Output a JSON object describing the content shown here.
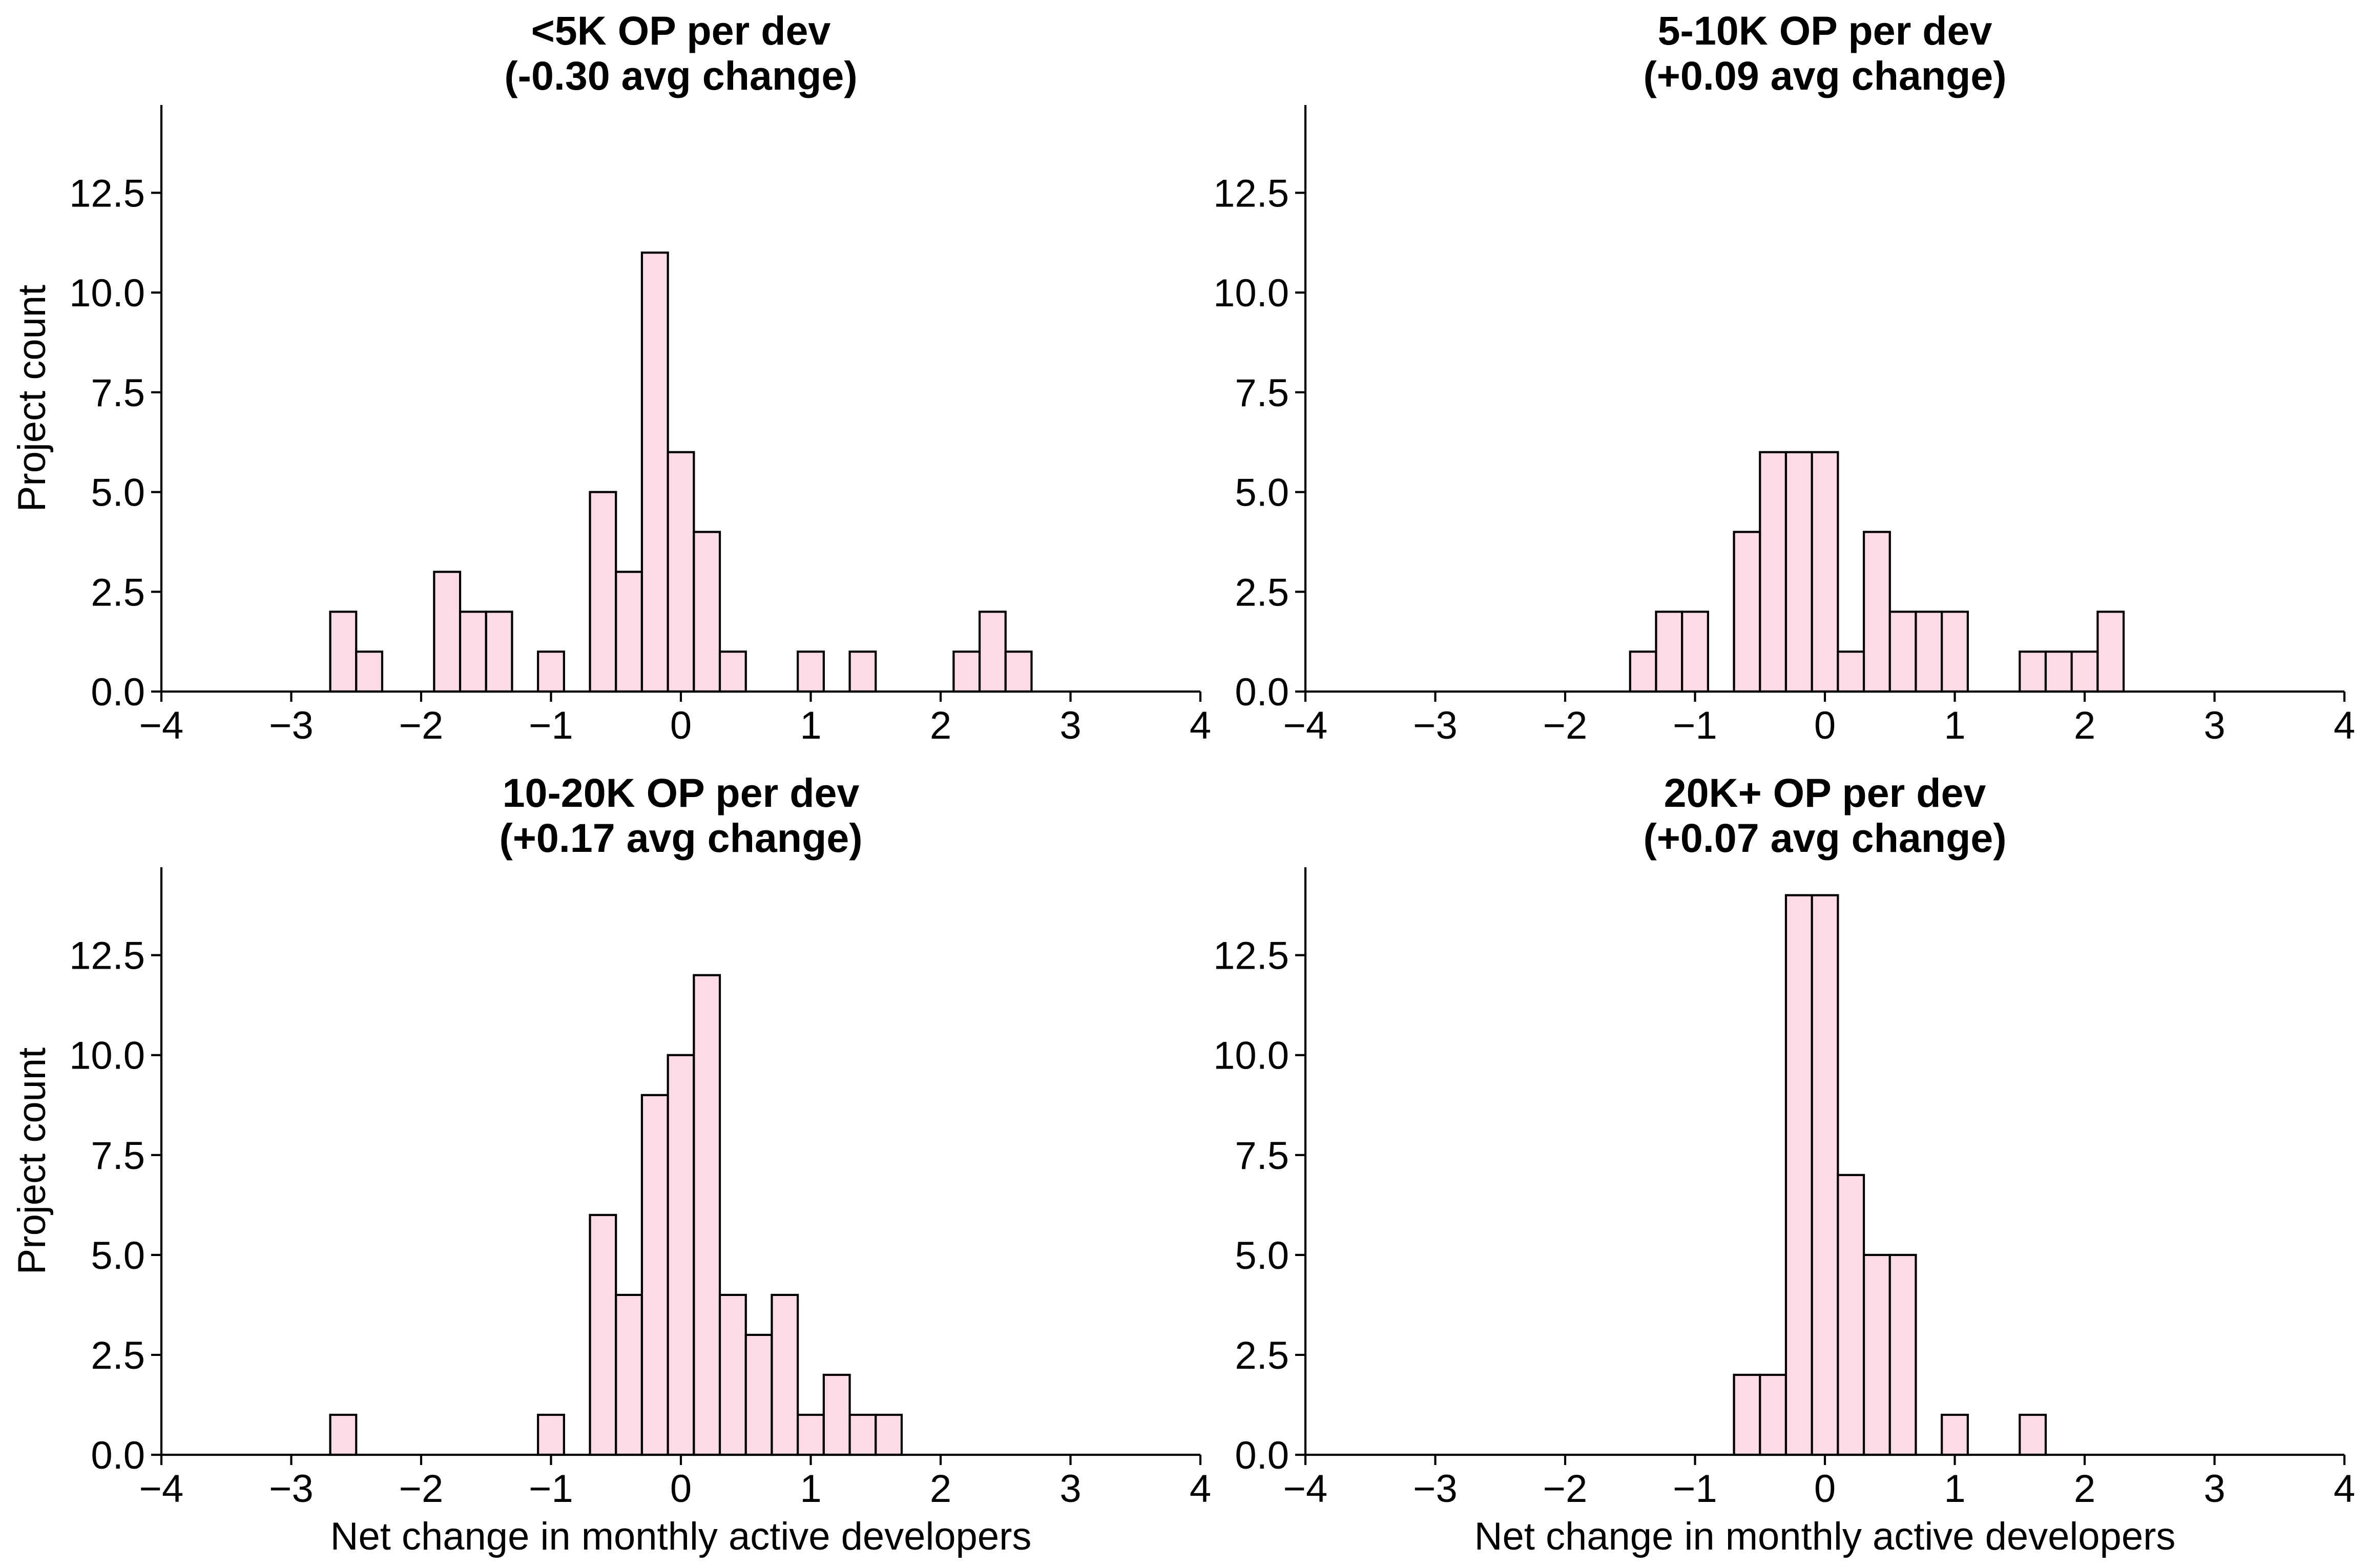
{
  "figure": {
    "bar_color": "#fddbe6",
    "edge_color": "#000000"
  },
  "chart_data": [
    {
      "type": "bar",
      "title_line1": "<5K OP per dev",
      "title_line2": "(-0.30 avg change)",
      "xlabel": "",
      "ylabel": "Project count",
      "xlim": [
        -4,
        4
      ],
      "ylim": [
        0,
        14.7
      ],
      "xticks": [
        -4,
        -3,
        -2,
        -1,
        0,
        1,
        2,
        3,
        4
      ],
      "xtick_labels": [
        "−4",
        "−3",
        "−2",
        "−1",
        "0",
        "1",
        "2",
        "3",
        "4"
      ],
      "yticks": [
        0,
        2.5,
        5,
        7.5,
        10,
        12.5
      ],
      "ytick_labels": [
        "0.0",
        "2.5",
        "5.0",
        "7.5",
        "10.0",
        "12.5"
      ],
      "bin_width": 0.2,
      "bin_starts": [
        -2.7,
        -2.5,
        -1.9,
        -1.7,
        -1.5,
        -1.1,
        -0.7,
        -0.5,
        -0.3,
        -0.1,
        0.1,
        0.3,
        0.9,
        1.3,
        2.1,
        2.3,
        2.5
      ],
      "values": [
        2,
        1,
        3,
        2,
        2,
        1,
        5,
        3,
        11,
        6,
        4,
        1,
        1,
        1,
        1,
        2,
        1
      ]
    },
    {
      "type": "bar",
      "title_line1": "5-10K OP per dev",
      "title_line2": "(+0.09 avg change)",
      "xlabel": "",
      "ylabel": "",
      "xlim": [
        -4,
        4
      ],
      "ylim": [
        0,
        14.7
      ],
      "xticks": [
        -4,
        -3,
        -2,
        -1,
        0,
        1,
        2,
        3,
        4
      ],
      "xtick_labels": [
        "−4",
        "−3",
        "−2",
        "−1",
        "0",
        "1",
        "2",
        "3",
        "4"
      ],
      "yticks": [
        0,
        2.5,
        5,
        7.5,
        10,
        12.5
      ],
      "ytick_labels": [
        "0.0",
        "2.5",
        "5.0",
        "7.5",
        "10.0",
        "12.5"
      ],
      "bin_width": 0.2,
      "bin_starts": [
        -1.5,
        -1.3,
        -1.1,
        -0.7,
        -0.5,
        -0.3,
        -0.1,
        0.1,
        0.3,
        0.5,
        0.7,
        0.9,
        1.5,
        1.7,
        1.9,
        2.1
      ],
      "values": [
        1,
        2,
        2,
        4,
        6,
        6,
        6,
        1,
        4,
        2,
        2,
        2,
        1,
        1,
        1,
        2
      ]
    },
    {
      "type": "bar",
      "title_line1": "10-20K OP per dev",
      "title_line2": "(+0.17 avg change)",
      "xlabel": "Net change in monthly active developers",
      "ylabel": "Project count",
      "xlim": [
        -4,
        4
      ],
      "ylim": [
        0,
        14.7
      ],
      "xticks": [
        -4,
        -3,
        -2,
        -1,
        0,
        1,
        2,
        3,
        4
      ],
      "xtick_labels": [
        "−4",
        "−3",
        "−2",
        "−1",
        "0",
        "1",
        "2",
        "3",
        "4"
      ],
      "yticks": [
        0,
        2.5,
        5,
        7.5,
        10,
        12.5
      ],
      "ytick_labels": [
        "0.0",
        "2.5",
        "5.0",
        "7.5",
        "10.0",
        "12.5"
      ],
      "bin_width": 0.2,
      "bin_starts": [
        -2.7,
        -1.1,
        -0.7,
        -0.5,
        -0.3,
        -0.1,
        0.1,
        0.3,
        0.5,
        0.7,
        0.9,
        1.1,
        1.3,
        1.5
      ],
      "values": [
        1,
        1,
        6,
        4,
        9,
        10,
        12,
        4,
        3,
        4,
        1,
        2,
        1,
        1
      ]
    },
    {
      "type": "bar",
      "title_line1": "20K+ OP per dev",
      "title_line2": "(+0.07 avg change)",
      "xlabel": "Net change in monthly active developers",
      "ylabel": "",
      "xlim": [
        -4,
        4
      ],
      "ylim": [
        0,
        14.7
      ],
      "xticks": [
        -4,
        -3,
        -2,
        -1,
        0,
        1,
        2,
        3,
        4
      ],
      "xtick_labels": [
        "−4",
        "−3",
        "−2",
        "−1",
        "0",
        "1",
        "2",
        "3",
        "4"
      ],
      "yticks": [
        0,
        2.5,
        5,
        7.5,
        10,
        12.5
      ],
      "ytick_labels": [
        "0.0",
        "2.5",
        "5.0",
        "7.5",
        "10.0",
        "12.5"
      ],
      "bin_width": 0.2,
      "bin_starts": [
        -0.7,
        -0.5,
        -0.3,
        -0.1,
        0.1,
        0.3,
        0.5,
        0.9,
        1.5
      ],
      "values": [
        2,
        2,
        14,
        14,
        7,
        5,
        5,
        1,
        1
      ]
    }
  ]
}
